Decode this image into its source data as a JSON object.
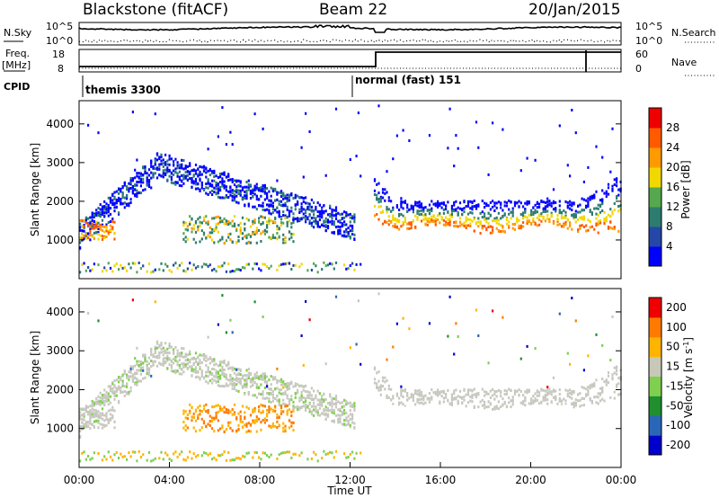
{
  "header": {
    "station": "Blackstone (fitACF)",
    "beam": "Beam 22",
    "date": "20/Jan/2015"
  },
  "top_panel": {
    "left_label": "N.Sky",
    "right_label": "N.Search",
    "left_ticks": [
      "10^5",
      "10^0"
    ],
    "right_ticks": [
      "10^5",
      "10^0"
    ]
  },
  "freq_panel": {
    "left_label_line1": "Freq.",
    "left_label_line2": "[MHz]",
    "right_label": "Nave",
    "left_ticks": [
      "18",
      "8"
    ],
    "right_ticks": [
      "60",
      "0"
    ]
  },
  "cpid_panel": {
    "label": "CPID",
    "modes": [
      "themis 3300",
      "normal (fast) 151"
    ]
  },
  "colors": {
    "power_scale": [
      "#0000ff",
      "#2447a8",
      "#2c7c6f",
      "#56a84e",
      "#f0d800",
      "#ff9a00",
      "#ff5a00",
      "#ee0000"
    ],
    "velocity_scale": [
      "#0000cc",
      "#2a66b8",
      "#1f8f2f",
      "#7fd04f",
      "#c8c8b8",
      "#ffb400",
      "#ff7a00",
      "#ee0000"
    ],
    "ground_scatter": "#c8c8c0"
  },
  "chart_data": [
    {
      "type": "heatmap",
      "panel": "power",
      "ylabel": "Slant Range [km]",
      "yticks": [
        "1000",
        "2000",
        "3000",
        "4000"
      ],
      "ylim": [
        0,
        4600
      ],
      "xlim": [
        0,
        24
      ],
      "colorbar": {
        "label": "Power [dB]",
        "ticks": [
          "4",
          "8",
          "12",
          "16",
          "20",
          "24",
          "28"
        ],
        "range": [
          0,
          32
        ]
      },
      "features": [
        {
          "name": "early echo band",
          "x": [
            0.0,
            3.8
          ],
          "y": [
            1050,
            3500
          ]
        },
        {
          "name": "arc",
          "x": [
            2.0,
            12.0
          ],
          "y": [
            1000,
            3600
          ]
        },
        {
          "name": "evening band",
          "x": [
            13.0,
            24.0
          ],
          "y": [
            1200,
            2700
          ]
        }
      ]
    },
    {
      "type": "heatmap",
      "panel": "velocity",
      "ylabel": "Slant Range [km]",
      "xlabel": "Time UT",
      "yticks": [
        "1000",
        "2000",
        "3000",
        "4000"
      ],
      "xticks": [
        "00:00",
        "04:00",
        "08:00",
        "12:00",
        "16:00",
        "20:00",
        "00:00"
      ],
      "ylim": [
        0,
        4600
      ],
      "xlim": [
        0,
        24
      ],
      "colorbar": {
        "label": "Velocity [m s",
        "label_superscript": "-1",
        "label_end": "]",
        "ticks": [
          "200",
          "100",
          "50",
          "15",
          "-15",
          "-50",
          "-100",
          "-200"
        ]
      }
    }
  ]
}
